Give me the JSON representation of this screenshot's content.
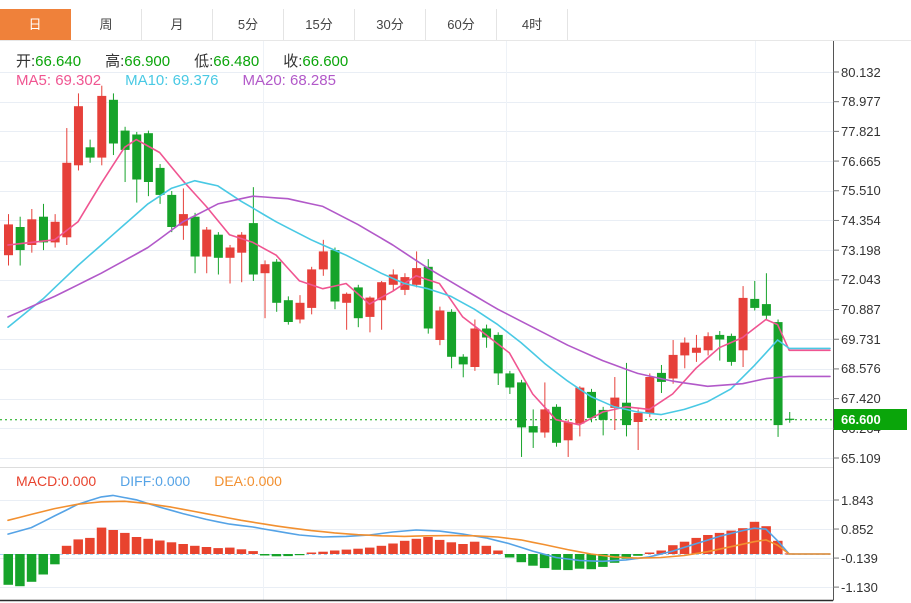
{
  "tabs": {
    "items": [
      {
        "label": "日",
        "active": true
      },
      {
        "label": "周",
        "active": false
      },
      {
        "label": "月",
        "active": false
      },
      {
        "label": "5分",
        "active": false
      },
      {
        "label": "15分",
        "active": false
      },
      {
        "label": "30分",
        "active": false
      },
      {
        "label": "60分",
        "active": false
      },
      {
        "label": "4时",
        "active": false
      }
    ]
  },
  "ohlc_legend": {
    "open_label": "开:",
    "open_value": "66.640",
    "high_label": "高:",
    "high_value": "66.900",
    "low_label": "低:",
    "low_value": "66.480",
    "close_label": "收:",
    "close_value": "66.600"
  },
  "ma_legend": {
    "ma5_label": "MA5:",
    "ma5_value": "69.302",
    "ma10_label": "MA10:",
    "ma10_value": "69.376",
    "ma20_label": "MA20:",
    "ma20_value": "68.285"
  },
  "macd_legend": {
    "macd_label": "MACD:",
    "macd_value": "0.000",
    "diff_label": "DIFF:",
    "diff_value": "0.000",
    "dea_label": "DEA:",
    "dea_value": "0.000"
  },
  "colors": {
    "tab_active_bg": "#ef813a",
    "candle_up": "#e6403a",
    "candle_down": "#16a32a",
    "ohlc_value_green": "#0aa50a",
    "price_tag_bg": "#0aa50a",
    "price_line_green": "#0aa50a",
    "ma5_pink": "#f05591",
    "ma10_cyan": "#49c9e4",
    "ma20_purple": "#b259c9",
    "diff_blue": "#55a3e6",
    "dea_orange": "#f29030",
    "macd_red": "#e8432e",
    "grid": "#e9eef5",
    "grid_vertical": "#eef2f7",
    "zero_dashed": "#a6d4f2",
    "axis_line": "#555555",
    "bottom_line": "#2b2b2b",
    "panel_separator": "#dddddd"
  },
  "chart_data": {
    "type": "candlestick",
    "title": "Daily K-line with MA5/MA10/MA20 and MACD sub-chart",
    "main": {
      "y_ticks": [
        "80.132",
        "78.977",
        "77.821",
        "76.665",
        "75.510",
        "74.354",
        "73.198",
        "72.043",
        "70.887",
        "69.731",
        "68.576",
        "67.420",
        "66.264",
        "65.109"
      ],
      "y_max": 80.132,
      "y_min": 65.109,
      "current_price": "66.600",
      "current_price_value": 66.6,
      "grid": true,
      "candles_ohlc": [
        [
          73.0,
          74.6,
          72.6,
          74.2
        ],
        [
          74.1,
          74.5,
          72.6,
          73.2
        ],
        [
          73.4,
          74.8,
          73.1,
          74.4
        ],
        [
          74.5,
          75.0,
          73.2,
          73.5
        ],
        [
          73.5,
          74.6,
          73.3,
          74.3
        ],
        [
          73.7,
          77.95,
          73.4,
          76.6
        ],
        [
          76.5,
          79.3,
          76.3,
          78.8
        ],
        [
          77.2,
          77.5,
          76.6,
          76.8
        ],
        [
          76.8,
          79.6,
          76.5,
          79.2
        ],
        [
          79.05,
          79.3,
          76.9,
          77.35
        ],
        [
          77.85,
          78.0,
          75.85,
          77.1
        ],
        [
          77.7,
          77.8,
          75.05,
          75.95
        ],
        [
          77.75,
          77.85,
          75.3,
          75.85
        ],
        [
          76.4,
          76.55,
          75.0,
          75.35
        ],
        [
          75.35,
          75.5,
          73.9,
          74.1
        ],
        [
          74.15,
          75.6,
          73.6,
          74.6
        ],
        [
          74.5,
          74.65,
          72.3,
          72.95
        ],
        [
          72.95,
          74.1,
          72.3,
          74.0
        ],
        [
          73.8,
          73.9,
          72.25,
          72.9
        ],
        [
          72.9,
          73.4,
          71.9,
          73.3
        ],
        [
          73.1,
          73.9,
          71.95,
          73.8
        ],
        [
          74.25,
          75.65,
          72.0,
          72.25
        ],
        [
          72.3,
          72.8,
          70.55,
          72.65
        ],
        [
          72.75,
          72.85,
          70.8,
          71.15
        ],
        [
          71.25,
          71.4,
          70.3,
          70.4
        ],
        [
          70.5,
          71.45,
          70.35,
          71.15
        ],
        [
          70.95,
          72.55,
          70.7,
          72.45
        ],
        [
          72.45,
          73.6,
          72.2,
          73.15
        ],
        [
          73.2,
          73.3,
          70.9,
          71.2
        ],
        [
          71.15,
          71.55,
          70.1,
          71.5
        ],
        [
          71.75,
          71.85,
          70.2,
          70.55
        ],
        [
          70.6,
          71.4,
          70.0,
          71.35
        ],
        [
          71.25,
          72.0,
          70.1,
          71.95
        ],
        [
          71.85,
          72.45,
          71.6,
          72.25
        ],
        [
          71.65,
          72.3,
          71.45,
          72.15
        ],
        [
          71.85,
          73.15,
          71.75,
          72.5
        ],
        [
          72.55,
          72.85,
          69.95,
          70.15
        ],
        [
          69.7,
          71.0,
          69.5,
          70.85
        ],
        [
          70.8,
          70.9,
          68.6,
          69.05
        ],
        [
          69.05,
          69.15,
          68.25,
          68.75
        ],
        [
          68.65,
          70.5,
          68.5,
          70.15
        ],
        [
          70.15,
          70.3,
          69.4,
          69.8
        ],
        [
          69.9,
          70.0,
          67.95,
          68.4
        ],
        [
          68.4,
          68.5,
          67.6,
          67.85
        ],
        [
          68.05,
          68.15,
          65.15,
          66.3
        ],
        [
          66.35,
          67.0,
          65.5,
          66.1
        ],
        [
          66.1,
          68.05,
          65.9,
          67.0
        ],
        [
          67.1,
          67.2,
          65.55,
          65.7
        ],
        [
          65.8,
          66.6,
          65.15,
          66.5
        ],
        [
          66.45,
          67.9,
          65.95,
          67.85
        ],
        [
          67.68,
          67.8,
          66.5,
          66.67
        ],
        [
          66.98,
          67.1,
          65.99,
          66.59
        ],
        [
          67.06,
          68.26,
          66.2,
          67.46
        ],
        [
          67.26,
          68.81,
          65.95,
          66.39
        ],
        [
          66.51,
          67.0,
          65.42,
          66.86
        ],
        [
          66.86,
          68.4,
          66.7,
          68.26
        ],
        [
          68.42,
          68.73,
          67.64,
          68.07
        ],
        [
          68.2,
          69.7,
          68.0,
          69.12
        ],
        [
          69.1,
          69.8,
          68.6,
          69.6
        ],
        [
          69.2,
          69.9,
          68.85,
          69.4
        ],
        [
          69.3,
          70.0,
          69.1,
          69.85
        ],
        [
          69.9,
          70.05,
          68.9,
          69.72
        ],
        [
          69.86,
          69.95,
          68.7,
          68.85
        ],
        [
          69.3,
          71.8,
          68.65,
          71.34
        ],
        [
          71.3,
          72.0,
          70.85,
          70.95
        ],
        [
          71.1,
          72.3,
          70.5,
          70.65
        ],
        [
          70.4,
          70.5,
          65.93,
          66.39
        ],
        [
          66.64,
          66.9,
          66.48,
          66.6
        ]
      ],
      "ma5_points": [
        [
          0,
          73.4
        ],
        [
          4,
          73.6
        ],
        [
          6,
          74.3
        ],
        [
          8,
          75.8
        ],
        [
          10,
          77.2
        ],
        [
          11,
          77.5
        ],
        [
          13,
          77.0
        ],
        [
          15,
          75.9
        ],
        [
          17,
          74.9
        ],
        [
          19,
          73.8
        ],
        [
          21,
          73.5
        ],
        [
          23,
          73.0
        ],
        [
          25,
          72.0
        ],
        [
          27,
          71.7
        ],
        [
          29,
          71.9
        ],
        [
          31,
          71.1
        ],
        [
          33,
          71.6
        ],
        [
          35,
          72.2
        ],
        [
          37,
          71.9
        ],
        [
          39,
          70.6
        ],
        [
          41,
          69.9
        ],
        [
          43,
          69.2
        ],
        [
          45,
          67.6
        ],
        [
          47,
          66.6
        ],
        [
          49,
          66.4
        ],
        [
          51,
          66.9
        ],
        [
          53,
          67.1
        ],
        [
          55,
          67.0
        ],
        [
          57,
          67.6
        ],
        [
          59,
          68.6
        ],
        [
          61,
          69.4
        ],
        [
          63,
          69.8
        ],
        [
          65,
          70.5
        ],
        [
          66,
          70.3
        ],
        [
          67,
          69.302
        ]
      ],
      "ma10_points": [
        [
          0,
          70.2
        ],
        [
          3,
          71.3
        ],
        [
          6,
          72.6
        ],
        [
          9,
          73.8
        ],
        [
          12,
          75.0
        ],
        [
          14,
          75.6
        ],
        [
          16,
          75.9
        ],
        [
          18,
          75.7
        ],
        [
          20,
          75.1
        ],
        [
          23,
          74.3
        ],
        [
          26,
          73.6
        ],
        [
          29,
          73.0
        ],
        [
          32,
          72.3
        ],
        [
          34,
          71.9
        ],
        [
          36,
          71.7
        ],
        [
          38,
          71.4
        ],
        [
          40,
          70.9
        ],
        [
          42,
          70.3
        ],
        [
          44,
          69.6
        ],
        [
          46,
          68.8
        ],
        [
          48,
          68.1
        ],
        [
          50,
          67.5
        ],
        [
          52,
          67.1
        ],
        [
          54,
          66.9
        ],
        [
          56,
          66.8
        ],
        [
          58,
          67.0
        ],
        [
          60,
          67.3
        ],
        [
          62,
          67.8
        ],
        [
          64,
          68.7
        ],
        [
          65,
          69.2
        ],
        [
          66,
          69.7
        ],
        [
          67,
          69.376
        ]
      ],
      "ma20_points": [
        [
          0,
          70.6
        ],
        [
          4,
          71.4
        ],
        [
          8,
          72.3
        ],
        [
          12,
          73.3
        ],
        [
          15,
          74.3
        ],
        [
          18,
          75.0
        ],
        [
          21,
          75.3
        ],
        [
          24,
          75.2
        ],
        [
          27,
          74.9
        ],
        [
          30,
          74.2
        ],
        [
          33,
          73.4
        ],
        [
          36,
          72.5
        ],
        [
          39,
          71.7
        ],
        [
          42,
          70.9
        ],
        [
          45,
          70.2
        ],
        [
          48,
          69.5
        ],
        [
          51,
          68.9
        ],
        [
          54,
          68.4
        ],
        [
          57,
          68.1
        ],
        [
          60,
          67.9
        ],
        [
          63,
          68.0
        ],
        [
          65,
          68.2
        ],
        [
          67,
          68.285
        ]
      ]
    },
    "macd_panel": {
      "y_ticks": [
        "1.843",
        "0.852",
        "-0.139",
        "-1.130"
      ],
      "histogram": [
        -1.05,
        -1.1,
        -0.95,
        -0.7,
        -0.35,
        0.28,
        0.5,
        0.55,
        0.9,
        0.82,
        0.72,
        0.58,
        0.52,
        0.46,
        0.4,
        0.34,
        0.28,
        0.24,
        0.2,
        0.22,
        0.16,
        0.1,
        -0.05,
        -0.08,
        -0.07,
        -0.04,
        0.05,
        0.08,
        0.12,
        0.15,
        0.18,
        0.22,
        0.28,
        0.36,
        0.45,
        0.52,
        0.58,
        0.48,
        0.4,
        0.34,
        0.42,
        0.28,
        0.12,
        -0.12,
        -0.28,
        -0.4,
        -0.48,
        -0.54,
        -0.55,
        -0.5,
        -0.52,
        -0.44,
        -0.3,
        -0.16,
        -0.06,
        0.05,
        0.12,
        0.3,
        0.42,
        0.55,
        0.65,
        0.72,
        0.8,
        0.88,
        1.1,
        0.95,
        0.45,
        0.02
      ],
      "diff_points": [
        [
          0,
          0.68
        ],
        [
          2,
          0.9
        ],
        [
          4,
          1.3
        ],
        [
          6,
          1.7
        ],
        [
          8,
          1.95
        ],
        [
          9,
          2.0
        ],
        [
          11,
          1.85
        ],
        [
          13,
          1.6
        ],
        [
          15,
          1.38
        ],
        [
          17,
          1.18
        ],
        [
          19,
          1.02
        ],
        [
          21,
          0.92
        ],
        [
          23,
          0.78
        ],
        [
          25,
          0.65
        ],
        [
          27,
          0.58
        ],
        [
          29,
          0.6
        ],
        [
          31,
          0.65
        ],
        [
          33,
          0.75
        ],
        [
          35,
          0.82
        ],
        [
          37,
          0.78
        ],
        [
          39,
          0.68
        ],
        [
          41,
          0.55
        ],
        [
          43,
          0.35
        ],
        [
          45,
          0.1
        ],
        [
          47,
          -0.12
        ],
        [
          49,
          -0.22
        ],
        [
          51,
          -0.25
        ],
        [
          53,
          -0.2
        ],
        [
          55,
          -0.1
        ],
        [
          57,
          0.1
        ],
        [
          59,
          0.35
        ],
        [
          61,
          0.6
        ],
        [
          63,
          0.8
        ],
        [
          64,
          0.88
        ],
        [
          65,
          0.85
        ],
        [
          66,
          0.45
        ],
        [
          67,
          0.0
        ]
      ],
      "dea_points": [
        [
          0,
          1.15
        ],
        [
          2,
          1.35
        ],
        [
          4,
          1.55
        ],
        [
          6,
          1.7
        ],
        [
          8,
          1.78
        ],
        [
          10,
          1.8
        ],
        [
          12,
          1.72
        ],
        [
          14,
          1.6
        ],
        [
          16,
          1.45
        ],
        [
          18,
          1.3
        ],
        [
          20,
          1.15
        ],
        [
          22,
          1.02
        ],
        [
          24,
          0.9
        ],
        [
          26,
          0.8
        ],
        [
          28,
          0.72
        ],
        [
          30,
          0.66
        ],
        [
          32,
          0.62
        ],
        [
          34,
          0.6
        ],
        [
          36,
          0.62
        ],
        [
          38,
          0.63
        ],
        [
          40,
          0.62
        ],
        [
          42,
          0.58
        ],
        [
          44,
          0.48
        ],
        [
          46,
          0.32
        ],
        [
          48,
          0.15
        ],
        [
          50,
          0.0
        ],
        [
          52,
          -0.1
        ],
        [
          54,
          -0.14
        ],
        [
          56,
          -0.12
        ],
        [
          58,
          -0.05
        ],
        [
          60,
          0.08
        ],
        [
          62,
          0.25
        ],
        [
          64,
          0.42
        ],
        [
          65,
          0.48
        ],
        [
          66,
          0.3
        ],
        [
          67,
          0.0
        ]
      ]
    }
  }
}
